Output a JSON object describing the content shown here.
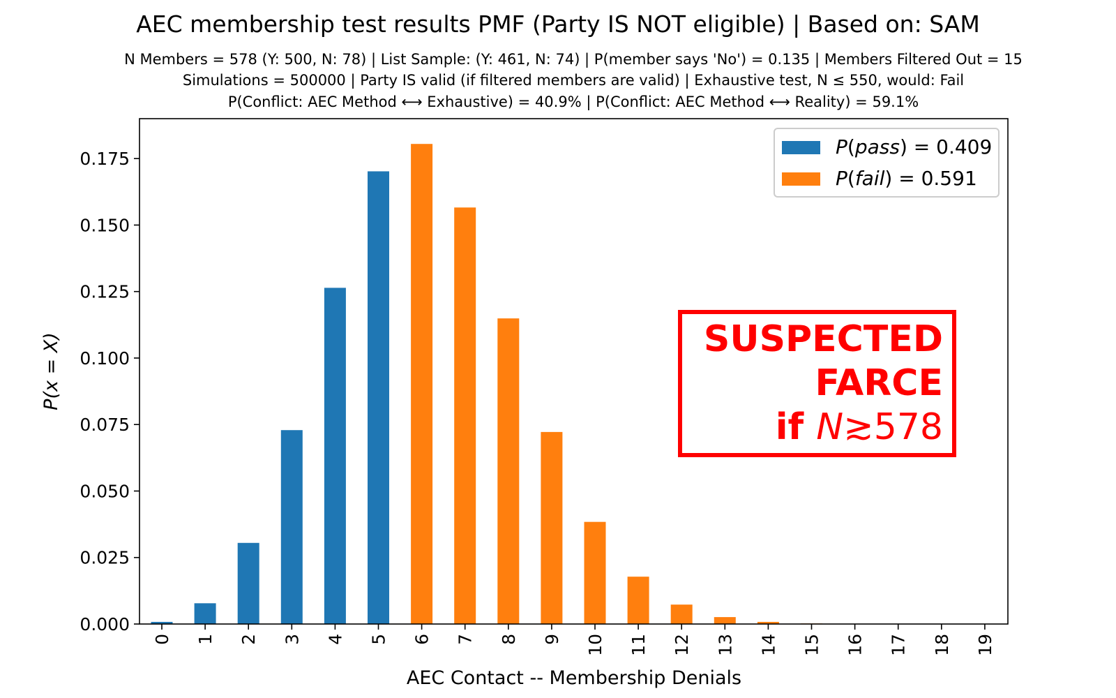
{
  "chart_data": {
    "type": "bar",
    "title": "AEC membership test results PMF (Party IS NOT eligible) | Based on: SAM",
    "subtitle_lines": [
      "N Members = 578 (Y: 500, N: 78) | List Sample: (Y: 461, N: 74) | P(member says 'No') = 0.135 | Members Filtered Out = 15",
      "Simulations = 500000 | Party IS valid (if filtered members are valid) | Exhaustive test, N ≤ 550, would: Fail",
      "P(Conflict: AEC Method ⟷ Exhaustive) = 40.9% | P(Conflict: AEC Method ⟷ Reality) = 59.1%"
    ],
    "xlabel": "AEC Contact -- Membership Denials",
    "ylabel": "P(x = X)",
    "categories": [
      "0",
      "1",
      "2",
      "3",
      "4",
      "5",
      "6",
      "7",
      "8",
      "9",
      "10",
      "11",
      "12",
      "13",
      "14",
      "15",
      "16",
      "17",
      "18",
      "19"
    ],
    "values": [
      0.0008,
      0.0078,
      0.0305,
      0.0729,
      0.1264,
      0.1702,
      0.1805,
      0.1566,
      0.1149,
      0.0722,
      0.0384,
      0.0178,
      0.0073,
      0.0026,
      0.0008,
      0.0002,
      0.0001,
      0.0,
      0.0,
      0.0
    ],
    "pass_max_category": 5,
    "ylim": [
      0,
      0.19
    ],
    "yticks": [
      "0.000",
      "0.025",
      "0.050",
      "0.075",
      "0.100",
      "0.125",
      "0.150",
      "0.175"
    ],
    "ytick_values": [
      0,
      0.025,
      0.05,
      0.075,
      0.1,
      0.125,
      0.15,
      0.175
    ],
    "grid": false,
    "legend_position": "top-right",
    "series": [
      {
        "name": "P(pass) = 0.409",
        "name_var": "pass",
        "name_value": "0.409",
        "color": "#1f77b4"
      },
      {
        "name": "P(fail) = 0.591",
        "name_var": "fail",
        "name_value": "0.591",
        "color": "#ff7f0e"
      }
    ],
    "annotation": {
      "lines": [
        "SUSPECTED",
        "FARCE",
        "if N≳578"
      ],
      "line3_prefix": "if ",
      "line3_var": "N",
      "line3_suffix": "≳578",
      "color": "#ff0000"
    }
  }
}
